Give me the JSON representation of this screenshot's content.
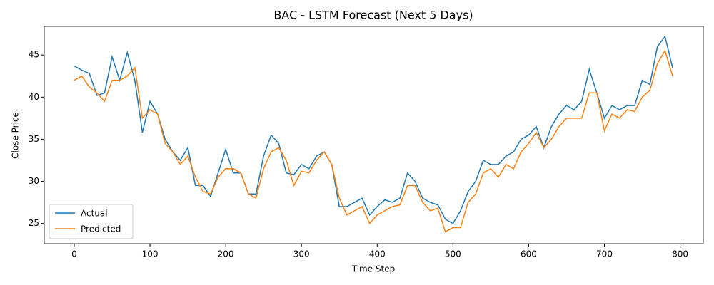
{
  "chart_data": {
    "type": "line",
    "title": "BAC - LSTM Forecast (Next 5 Days)",
    "xlabel": "Time Step",
    "ylabel": "Close Price",
    "x": [
      0,
      10,
      20,
      30,
      40,
      50,
      60,
      70,
      80,
      90,
      100,
      110,
      120,
      130,
      140,
      150,
      160,
      170,
      180,
      190,
      200,
      210,
      220,
      230,
      240,
      250,
      260,
      270,
      280,
      290,
      300,
      310,
      320,
      330,
      340,
      350,
      360,
      370,
      380,
      390,
      400,
      410,
      420,
      430,
      440,
      450,
      460,
      470,
      480,
      490,
      500,
      510,
      520,
      530,
      540,
      550,
      560,
      570,
      580,
      590,
      600,
      610,
      620,
      630,
      640,
      650,
      660,
      670,
      680,
      690,
      700,
      710,
      720,
      730,
      740,
      750,
      760,
      770,
      780,
      790
    ],
    "series": [
      {
        "name": "Actual",
        "color": "#1f77b4",
        "values": [
          43.7,
          43.2,
          42.8,
          40.2,
          40.5,
          44.8,
          42,
          45.3,
          42,
          35.8,
          39.5,
          38,
          35,
          33.5,
          32.5,
          34,
          29.5,
          29.5,
          28.2,
          31,
          33.8,
          31,
          31,
          28.5,
          28.5,
          33,
          35.5,
          34.5,
          31,
          30.8,
          32,
          31.5,
          33,
          33.5,
          32,
          27,
          27,
          27.5,
          28,
          26,
          27,
          27.8,
          27.5,
          28,
          31,
          30,
          28,
          27.5,
          27.2,
          25.5,
          25,
          26.5,
          28.8,
          30,
          32.5,
          32,
          32,
          33,
          33.5,
          35,
          35.5,
          36.5,
          34,
          36.5,
          38,
          39,
          38.5,
          39.5,
          43.3,
          40.5,
          37.5,
          39,
          38.5,
          39,
          39,
          42,
          41.5,
          46,
          47.2,
          43.5
        ]
      },
      {
        "name": "Predicted",
        "color": "#ff7f0e",
        "values": [
          42,
          42.5,
          41.2,
          40.5,
          39.5,
          42,
          42,
          42.5,
          43.5,
          37.5,
          38.5,
          38,
          34.5,
          33.5,
          32,
          33,
          30.5,
          28.8,
          28.5,
          30.5,
          31.5,
          31.5,
          31,
          28.5,
          28,
          31.5,
          33.5,
          34,
          32.5,
          29.5,
          31.2,
          31,
          32.5,
          33.5,
          32,
          28,
          26,
          26.5,
          27,
          25,
          26,
          26.5,
          27,
          27.2,
          29.5,
          29.5,
          27.5,
          26.5,
          26.8,
          24,
          24.5,
          24.5,
          27.5,
          28.5,
          31,
          31.5,
          30.5,
          32,
          31.5,
          33.5,
          34.5,
          35.8,
          34,
          35,
          36.5,
          37.5,
          37.5,
          37.5,
          40.5,
          40.5,
          36,
          38,
          37.5,
          38.5,
          38.3,
          40,
          40.8,
          44,
          45.5,
          42.5
        ]
      }
    ],
    "xlim": [
      -39.55,
      830.55
    ],
    "xticks": [
      0,
      100,
      200,
      300,
      400,
      500,
      600,
      700,
      800
    ],
    "ylim": [
      22.6,
      48.4
    ],
    "yticks": [
      25,
      30,
      35,
      40,
      45
    ],
    "grid": false,
    "legend": "lower left"
  }
}
